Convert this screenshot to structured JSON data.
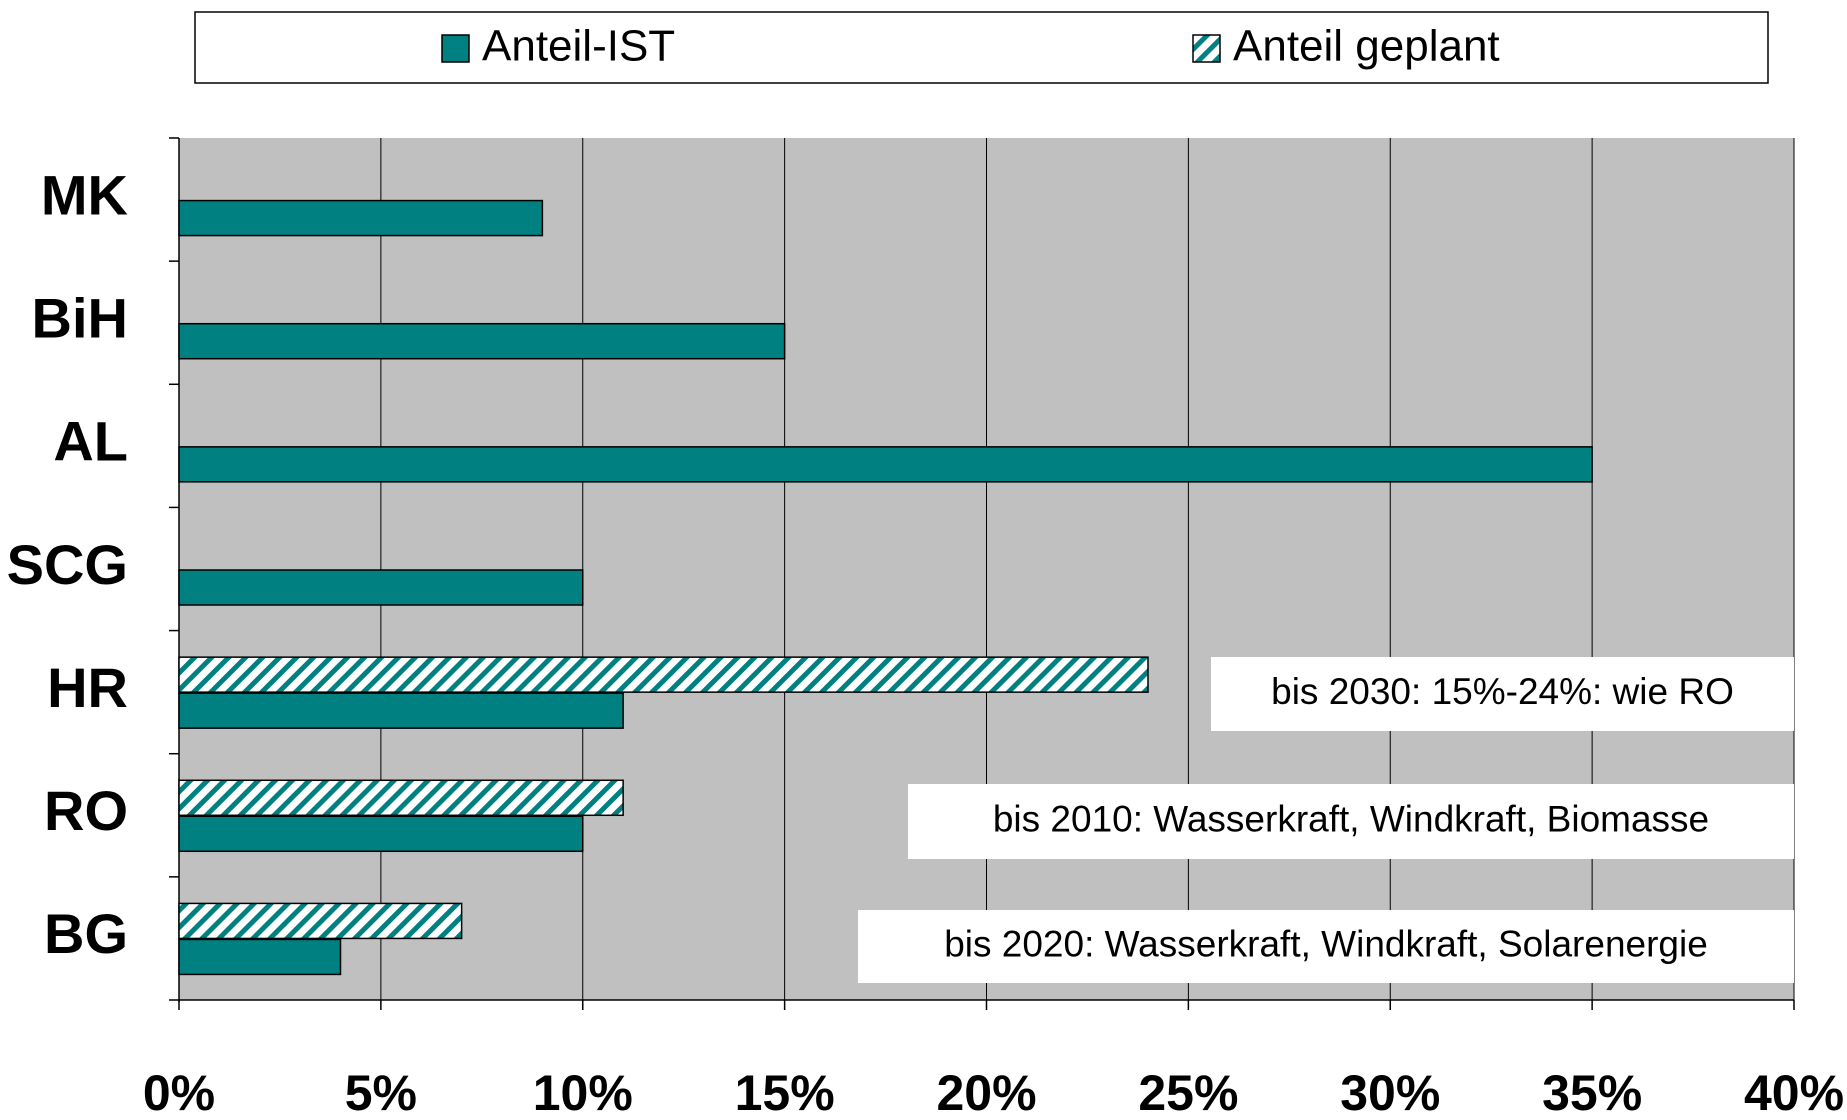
{
  "chart_data": {
    "type": "hbar",
    "categories": [
      "MK",
      "BiH",
      "AL",
      "SCG",
      "HR",
      "RO",
      "BG"
    ],
    "series": [
      {
        "name": "Anteil-IST",
        "color": "#008080",
        "values": [
          9,
          15,
          35,
          10,
          11,
          10,
          4
        ]
      },
      {
        "name": "Anteil geplant",
        "color": "#008080",
        "pattern": "hatch",
        "values": [
          null,
          null,
          null,
          null,
          24,
          11,
          7
        ]
      }
    ],
    "xlim": [
      0,
      40
    ],
    "xticks": [
      {
        "value": 0,
        "label": "0%"
      },
      {
        "value": 5,
        "label": "5%"
      },
      {
        "value": 10,
        "label": "10%"
      },
      {
        "value": 15,
        "label": "15%"
      },
      {
        "value": 20,
        "label": "20%"
      },
      {
        "value": 25,
        "label": "25%"
      },
      {
        "value": 30,
        "label": "30%"
      },
      {
        "value": 35,
        "label": "35%"
      },
      {
        "value": 40,
        "label": "40%"
      }
    ],
    "grid": true,
    "legend": "top",
    "annotations": [
      "bis 2030: 15%-24%: wie RO",
      "bis 2010: Wasserkraft, Windkraft, Biomasse",
      "bis 2020: Wasserkraft, Windkraft, Solarenergie"
    ]
  }
}
